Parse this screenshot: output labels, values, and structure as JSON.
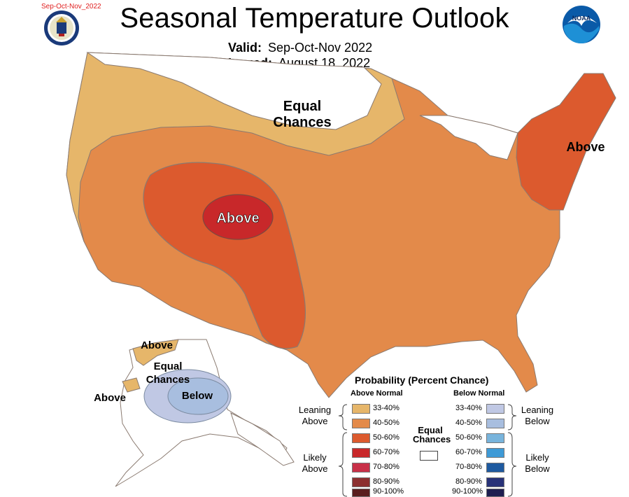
{
  "file_tag": "Sep-Oct-Nov_2022",
  "title": "Seasonal Temperature Outlook",
  "valid_label": "Valid:",
  "valid_value": "Sep-Oct-Nov 2022",
  "issued_label": "Issued:",
  "issued_value": "August 18, 2022",
  "logos": {
    "left": "us-department-of-commerce-seal",
    "right": "noaa-logo"
  },
  "map_labels": {
    "conus_equal": "Equal",
    "conus_chances": "Chances",
    "conus_above_center": "Above",
    "conus_above_northeast": "Above",
    "ak_above_north": "Above",
    "ak_equal": "Equal",
    "ak_chances": "Chances",
    "ak_below": "Below",
    "ak_above_west": "Above"
  },
  "colors": {
    "above_33_40": "#e6b66a",
    "above_40_50": "#e38a4a",
    "above_50_60": "#dc5a2e",
    "above_60_70": "#c8282a",
    "above_70_80": "#c83048",
    "above_80_90": "#8c3030",
    "above_90_100": "#5a1e1e",
    "below_33_40": "#c0c8e4",
    "below_40_50": "#a8bedf",
    "below_50_60": "#78b4dc",
    "below_60_70": "#3e9ad6",
    "below_70_80": "#1e5aa0",
    "below_80_90": "#283278",
    "below_90_100": "#1e1e50",
    "equal_chances": "#ffffff"
  },
  "legend": {
    "title": "Probability (Percent Chance)",
    "above_header": "Above Normal",
    "below_header": "Below Normal",
    "equal_line1": "Equal",
    "equal_line2": "Chances",
    "leaning_above_1": "Leaning",
    "leaning_above_2": "Above",
    "likely_above_1": "Likely",
    "likely_above_2": "Above",
    "leaning_below_1": "Leaning",
    "leaning_below_2": "Below",
    "likely_below_1": "Likely",
    "likely_below_2": "Below",
    "above_pcts": [
      "33-40%",
      "40-50%",
      "50-60%",
      "60-70%",
      "70-80%",
      "80-90%",
      "90-100%"
    ],
    "below_pcts": [
      "33-40%",
      "40-50%",
      "50-60%",
      "60-70%",
      "70-80%",
      "80-90%",
      "90-100%"
    ]
  }
}
